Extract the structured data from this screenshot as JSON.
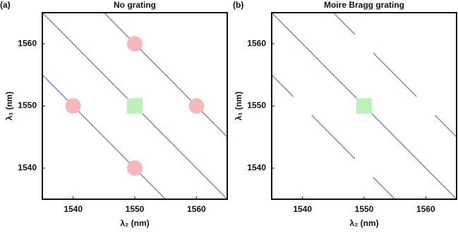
{
  "chart_data": [
    {
      "type": "line",
      "panel": "(a)",
      "title": "No grating",
      "xlabel": "λ₂ (nm)",
      "ylabel": "λ₁ (nm)",
      "xlim": [
        1535,
        1565
      ],
      "ylim": [
        1535,
        1565
      ],
      "xticks": [
        1540,
        1550,
        1560
      ],
      "yticks": [
        1540,
        1550,
        1560
      ],
      "series": [
        {
          "type": "line",
          "color": "#7b7bd0",
          "x": [
            1545,
            1565
          ],
          "values": [
            1565,
            1545
          ]
        },
        {
          "type": "line",
          "color": "#7b7bd0",
          "x": [
            1535,
            1565
          ],
          "values": [
            1565,
            1535
          ]
        },
        {
          "type": "line",
          "color": "#7b7bd0",
          "x": [
            1535,
            1555
          ],
          "values": [
            1555,
            1535
          ]
        },
        {
          "type": "scatter",
          "marker": "circle",
          "color": "#f6b9ba",
          "x": [
            1550,
            1560,
            1540,
            1550
          ],
          "values": [
            1560,
            1550,
            1550,
            1540
          ]
        },
        {
          "type": "scatter",
          "marker": "square",
          "color": "#b9f3b9",
          "x": [
            1550
          ],
          "values": [
            1550
          ]
        }
      ]
    },
    {
      "type": "line",
      "panel": "(b)",
      "title": "Moire Bragg grating",
      "xlabel": "λ₂ (nm)",
      "ylabel": "λ₁ (nm)",
      "xlim": [
        1535,
        1565
      ],
      "ylim": [
        1535,
        1565
      ],
      "xticks": [
        1540,
        1550,
        1560
      ],
      "yticks": [
        1540,
        1550,
        1560
      ],
      "series": [
        {
          "type": "line",
          "color": "#7b7bd0",
          "x": [
            1545,
            1548.5,
            1550,
            1551.5,
            1558.5,
            1560,
            1561.5,
            1565
          ],
          "values": [
            1565,
            1561.5,
            null,
            1558.5,
            1551.5,
            null,
            1548.5,
            1545
          ]
        },
        {
          "type": "line",
          "color": "#7b7bd0",
          "x": [
            1535,
            1565
          ],
          "values": [
            1565,
            1535
          ]
        },
        {
          "type": "line",
          "color": "#7b7bd0",
          "x": [
            1535,
            1538.5,
            1540,
            1541.5,
            1548.5,
            1550,
            1551.5,
            1555
          ],
          "values": [
            1555,
            1551.5,
            null,
            1548.5,
            1541.5,
            null,
            1538.5,
            1535
          ]
        },
        {
          "type": "scatter",
          "marker": "square",
          "color": "#b9f3b9",
          "x": [
            1550
          ],
          "values": [
            1550
          ]
        }
      ]
    }
  ]
}
